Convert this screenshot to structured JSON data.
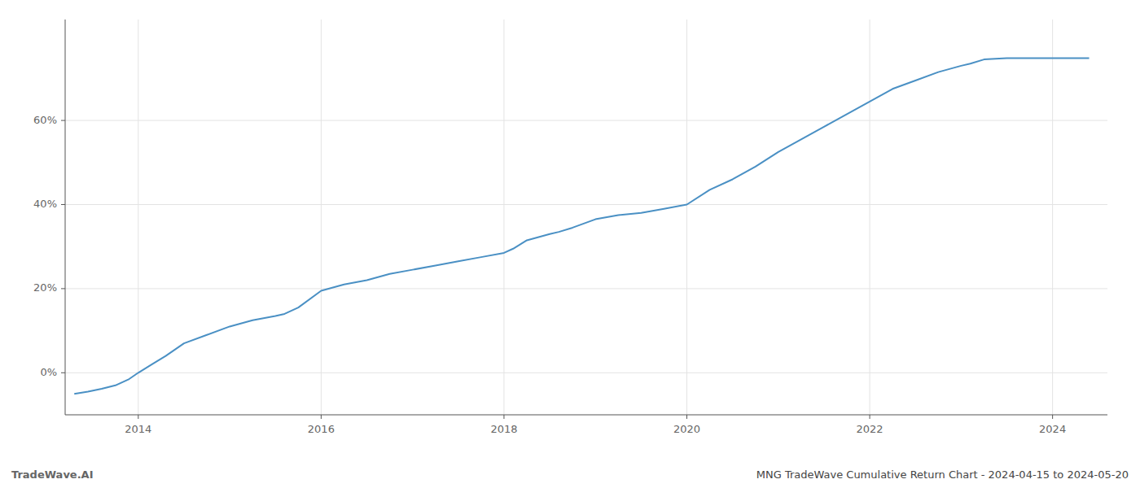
{
  "chart_data": {
    "type": "line",
    "title": "MNG TradeWave Cumulative Return Chart - 2024-04-15 to 2024-05-20",
    "annotations": [
      "TradeWave.AI"
    ],
    "color": "#4a90c4",
    "grid": true,
    "x": [
      2013.3,
      2013.45,
      2013.6,
      2013.75,
      2013.9,
      2014.0,
      2014.15,
      2014.3,
      2014.5,
      2014.75,
      2015.0,
      2015.25,
      2015.5,
      2015.6,
      2015.75,
      2016.0,
      2016.25,
      2016.5,
      2016.75,
      2017.0,
      2017.25,
      2017.5,
      2017.75,
      2018.0,
      2018.1,
      2018.25,
      2018.5,
      2018.6,
      2018.75,
      2019.0,
      2019.25,
      2019.5,
      2019.75,
      2020.0,
      2020.25,
      2020.5,
      2020.75,
      2021.0,
      2021.25,
      2021.5,
      2021.75,
      2022.0,
      2022.25,
      2022.5,
      2022.75,
      2023.0,
      2023.1,
      2023.25,
      2023.5,
      2023.75,
      2024.0,
      2024.25,
      2024.4
    ],
    "values": [
      -0.05,
      -0.045,
      -0.038,
      -0.03,
      -0.015,
      0.0,
      0.02,
      0.04,
      0.07,
      0.09,
      0.11,
      0.125,
      0.135,
      0.14,
      0.155,
      0.195,
      0.21,
      0.22,
      0.235,
      0.245,
      0.255,
      0.265,
      0.275,
      0.285,
      0.295,
      0.315,
      0.33,
      0.335,
      0.345,
      0.365,
      0.375,
      0.38,
      0.39,
      0.4,
      0.435,
      0.46,
      0.49,
      0.525,
      0.555,
      0.585,
      0.615,
      0.645,
      0.675,
      0.695,
      0.715,
      0.73,
      0.735,
      0.745,
      0.748,
      0.748,
      0.748,
      0.748,
      0.748
    ],
    "xlim": [
      2013.2,
      2024.6
    ],
    "xticks": [
      2014,
      2016,
      2018,
      2020,
      2022,
      2024
    ],
    "ylim": [
      -0.1,
      0.84
    ],
    "yticks": [
      {
        "value": 0.0,
        "label": "0%"
      },
      {
        "value": 0.2,
        "label": "20%"
      },
      {
        "value": 0.4,
        "label": "40%"
      },
      {
        "value": 0.6,
        "label": "60%"
      }
    ]
  }
}
